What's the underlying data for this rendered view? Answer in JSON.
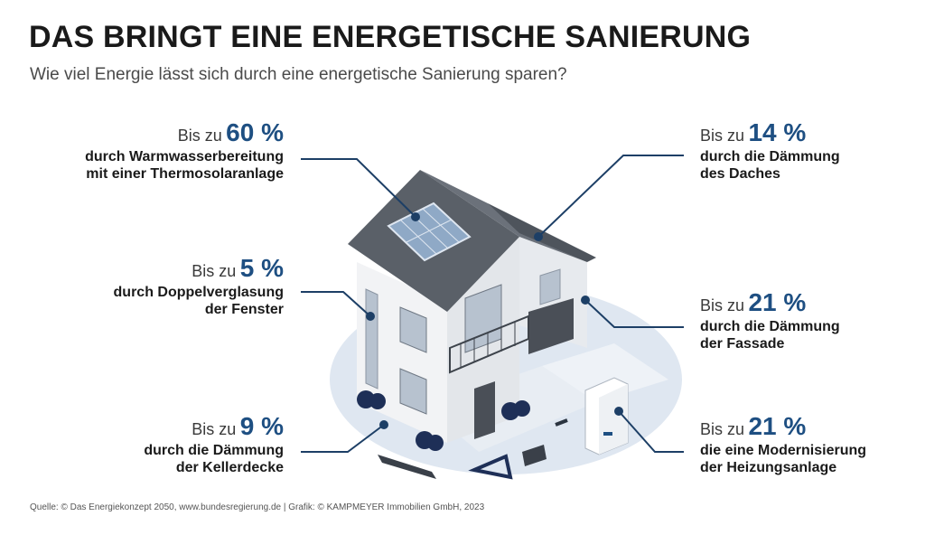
{
  "header": {
    "title": "DAS BRINGT EINE ENERGETISCHE SANIERUNG",
    "subtitle": "Wie viel Energie lässt sich durch eine energetische Sanierung sparen?"
  },
  "callouts": {
    "solar": {
      "prefix": "Bis zu",
      "percent": "60 %",
      "line1": "durch Warmwasserbereitung",
      "line2": "mit einer Thermosolaranlage"
    },
    "window": {
      "prefix": "Bis zu",
      "percent": "5 %",
      "line1": "durch Doppelverglasung",
      "line2": "der Fenster"
    },
    "basement": {
      "prefix": "Bis zu",
      "percent": "9 %",
      "line1": "durch die Dämmung",
      "line2": "der Kellerdecke"
    },
    "roof": {
      "prefix": "Bis zu",
      "percent": "14 %",
      "line1": "durch die Dämmung",
      "line2": "des Daches"
    },
    "facade": {
      "prefix": "Bis zu",
      "percent": "21 %",
      "line1": "durch die Dämmung",
      "line2": "der Fassade"
    },
    "heating": {
      "prefix": "Bis zu",
      "percent": "21 %",
      "line1": "die eine Modernisierung",
      "line2": "der Heizungsanlage"
    }
  },
  "source": "Quelle: © Das Energiekonzept 2050, www.bundesregierung.de | Grafik: © KAMPMEYER Immobilien GmbH, 2023",
  "colors": {
    "accent": "#1e4f82",
    "line": "#1d3f66",
    "roof": "#5a6068",
    "ground": "#dfe7f1"
  }
}
